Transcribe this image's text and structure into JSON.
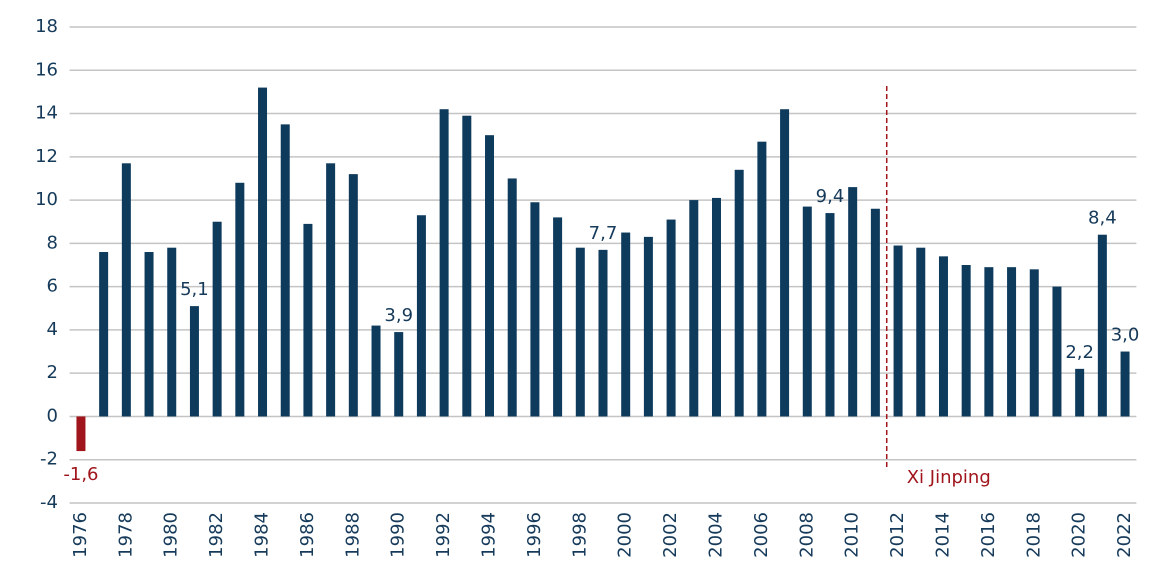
{
  "chart_data": {
    "type": "bar",
    "categories": [
      "1976",
      null,
      "1978",
      null,
      "1980",
      null,
      "1982",
      null,
      "1984",
      null,
      "1986",
      null,
      "1988",
      null,
      "1990",
      null,
      "1992",
      null,
      "1994",
      null,
      "1996",
      null,
      "1998",
      null,
      "2000",
      null,
      "2002",
      null,
      "2004",
      null,
      "2006",
      null,
      "2008",
      null,
      "2010",
      null,
      "2012",
      null,
      "2014",
      null,
      "2016",
      null,
      "2018",
      null,
      "2020",
      null,
      "2022"
    ],
    "values": [
      -1.6,
      7.6,
      11.7,
      7.6,
      7.8,
      5.1,
      9.0,
      10.8,
      15.2,
      13.5,
      8.9,
      11.7,
      11.2,
      4.2,
      3.9,
      9.3,
      14.2,
      13.9,
      13.0,
      11.0,
      9.9,
      9.2,
      7.8,
      7.7,
      8.5,
      8.3,
      9.1,
      10.0,
      10.1,
      11.4,
      12.7,
      14.2,
      9.7,
      9.4,
      10.6,
      9.6,
      7.9,
      7.8,
      7.4,
      7.0,
      6.9,
      6.9,
      6.8,
      6.0,
      2.2,
      8.4,
      3.0
    ],
    "value_labels": [
      "-1,6",
      null,
      null,
      null,
      null,
      "5,1",
      null,
      null,
      null,
      null,
      null,
      null,
      null,
      null,
      "3,9",
      null,
      null,
      null,
      null,
      null,
      null,
      null,
      null,
      "7,7",
      null,
      null,
      null,
      null,
      null,
      null,
      null,
      null,
      null,
      "9,4",
      null,
      null,
      null,
      null,
      null,
      null,
      null,
      null,
      null,
      null,
      "2,2",
      "8,4",
      "3,0"
    ],
    "color": "#0e3a5c",
    "negative_color": "#a0151b",
    "ylim": [
      -4,
      18
    ],
    "yticks": [
      -4,
      -2,
      0,
      2,
      4,
      6,
      8,
      10,
      12,
      14,
      16,
      18
    ],
    "grid": true,
    "annotation": {
      "text": "Xi Jinping",
      "from": "2012",
      "color": "#a0151b"
    }
  }
}
